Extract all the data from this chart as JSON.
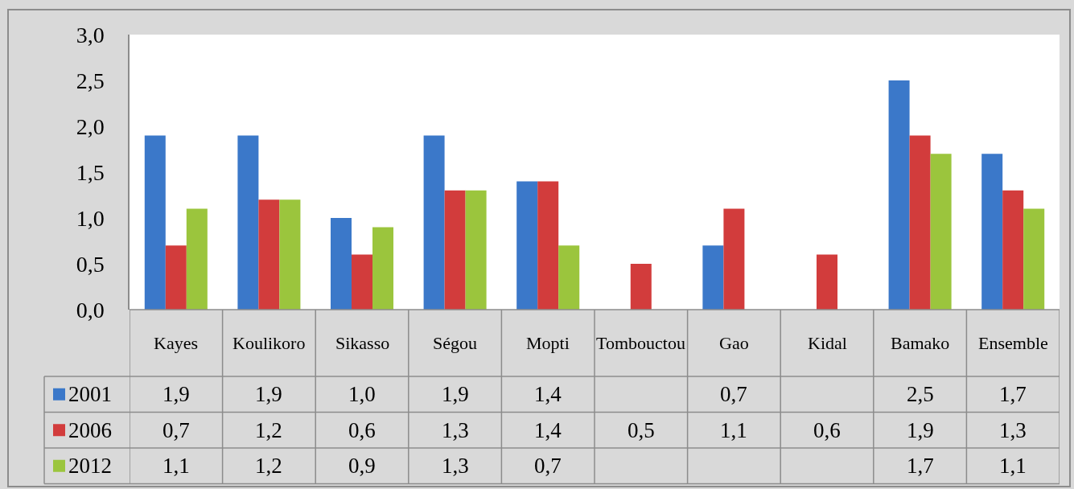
{
  "chart_data": {
    "type": "bar",
    "categories": [
      "Kayes",
      "Koulikoro",
      "Sikasso",
      "Ségou",
      "Mopti",
      "Tombouctou",
      "Gao",
      "Kidal",
      "Bamako",
      "Ensemble"
    ],
    "series": [
      {
        "name": "2001",
        "color": "#3b78c9",
        "values": [
          1.9,
          1.9,
          1.0,
          1.9,
          1.4,
          null,
          0.7,
          null,
          2.5,
          1.7
        ],
        "value_labels": [
          "1,9",
          "1,9",
          "1,0",
          "1,9",
          "1,4",
          null,
          "0,7",
          null,
          "2,5",
          "1,7"
        ]
      },
      {
        "name": "2006",
        "color": "#d23c3c",
        "values": [
          0.7,
          1.2,
          0.6,
          1.3,
          1.4,
          0.5,
          1.1,
          0.6,
          1.9,
          1.3
        ],
        "value_labels": [
          "0,7",
          "1,2",
          "0,6",
          "1,3",
          "1,4",
          "0,5",
          "1,1",
          "0,6",
          "1,9",
          "1,3"
        ]
      },
      {
        "name": "2012",
        "color": "#9bc53d",
        "values": [
          1.1,
          1.2,
          0.9,
          1.3,
          0.7,
          null,
          null,
          null,
          1.7,
          1.1
        ],
        "value_labels": [
          "1,1",
          "1,2",
          "0,9",
          "1,3",
          "0,7",
          null,
          null,
          null,
          "1,7",
          "1,1"
        ]
      }
    ],
    "ylim": [
      0,
      3
    ],
    "yticks": [
      {
        "value": 0,
        "label": "0,0"
      },
      {
        "value": 0.5,
        "label": "0,5"
      },
      {
        "value": 1,
        "label": "1,0"
      },
      {
        "value": 1.5,
        "label": "1,5"
      },
      {
        "value": 2,
        "label": "2,0"
      },
      {
        "value": 2.5,
        "label": "2,5"
      },
      {
        "value": 3,
        "label": "3,0"
      }
    ],
    "grid": false,
    "legend": "bottom left"
  }
}
